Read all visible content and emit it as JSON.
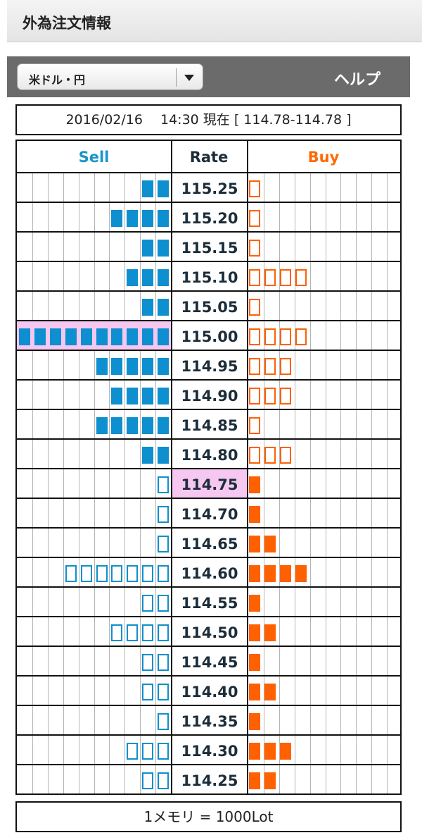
{
  "title": "外為注文情報",
  "currency_select": {
    "selected": "米ドル・円"
  },
  "help_label": "ヘルプ",
  "info": "2016/02/16　 14:30 現在 [ 114.78-114.78 ]",
  "headers": {
    "sell": "Sell",
    "rate": "Rate",
    "buy": "Buy"
  },
  "orderbook": {
    "rows": [
      {
        "rate": "115.25",
        "sell": 2,
        "sell_type": "filled",
        "buy": 1,
        "buy_type": "hollow"
      },
      {
        "rate": "115.20",
        "sell": 4,
        "sell_type": "filled",
        "buy": 1,
        "buy_type": "hollow"
      },
      {
        "rate": "115.15",
        "sell": 2,
        "sell_type": "filled",
        "buy": 1,
        "buy_type": "hollow"
      },
      {
        "rate": "115.10",
        "sell": 3,
        "sell_type": "filled",
        "buy": 4,
        "buy_type": "hollow"
      },
      {
        "rate": "115.05",
        "sell": 2,
        "sell_type": "filled",
        "buy": 1,
        "buy_type": "hollow"
      },
      {
        "rate": "115.00",
        "sell": 10,
        "sell_type": "filled",
        "buy": 4,
        "buy_type": "hollow",
        "sell_highlight": true
      },
      {
        "rate": "114.95",
        "sell": 5,
        "sell_type": "filled",
        "buy": 3,
        "buy_type": "hollow"
      },
      {
        "rate": "114.90",
        "sell": 4,
        "sell_type": "filled",
        "buy": 3,
        "buy_type": "hollow"
      },
      {
        "rate": "114.85",
        "sell": 5,
        "sell_type": "filled",
        "buy": 1,
        "buy_type": "hollow"
      },
      {
        "rate": "114.80",
        "sell": 2,
        "sell_type": "filled",
        "buy": 3,
        "buy_type": "hollow"
      },
      {
        "rate": "114.75",
        "sell": 1,
        "sell_type": "hollow",
        "buy": 1,
        "buy_type": "filled",
        "rate_highlight": true
      },
      {
        "rate": "114.70",
        "sell": 1,
        "sell_type": "hollow",
        "buy": 1,
        "buy_type": "filled"
      },
      {
        "rate": "114.65",
        "sell": 1,
        "sell_type": "hollow",
        "buy": 2,
        "buy_type": "filled"
      },
      {
        "rate": "114.60",
        "sell": 7,
        "sell_type": "hollow",
        "buy": 4,
        "buy_type": "filled"
      },
      {
        "rate": "114.55",
        "sell": 2,
        "sell_type": "hollow",
        "buy": 1,
        "buy_type": "filled"
      },
      {
        "rate": "114.50",
        "sell": 4,
        "sell_type": "hollow",
        "buy": 2,
        "buy_type": "filled"
      },
      {
        "rate": "114.45",
        "sell": 2,
        "sell_type": "hollow",
        "buy": 1,
        "buy_type": "filled"
      },
      {
        "rate": "114.40",
        "sell": 2,
        "sell_type": "hollow",
        "buy": 2,
        "buy_type": "filled"
      },
      {
        "rate": "114.35",
        "sell": 1,
        "sell_type": "hollow",
        "buy": 1,
        "buy_type": "filled"
      },
      {
        "rate": "114.30",
        "sell": 3,
        "sell_type": "hollow",
        "buy": 3,
        "buy_type": "filled"
      },
      {
        "rate": "114.25",
        "sell": 2,
        "sell_type": "hollow",
        "buy": 2,
        "buy_type": "filled"
      }
    ]
  },
  "footer": "1メモリ = 1000Lot",
  "colors": {
    "sell": "#0e8fcf",
    "buy": "#ff6000",
    "highlight": "#f6c8f1",
    "rate_text": "#1c2d3a",
    "toolbar": "#6b6b6b"
  }
}
